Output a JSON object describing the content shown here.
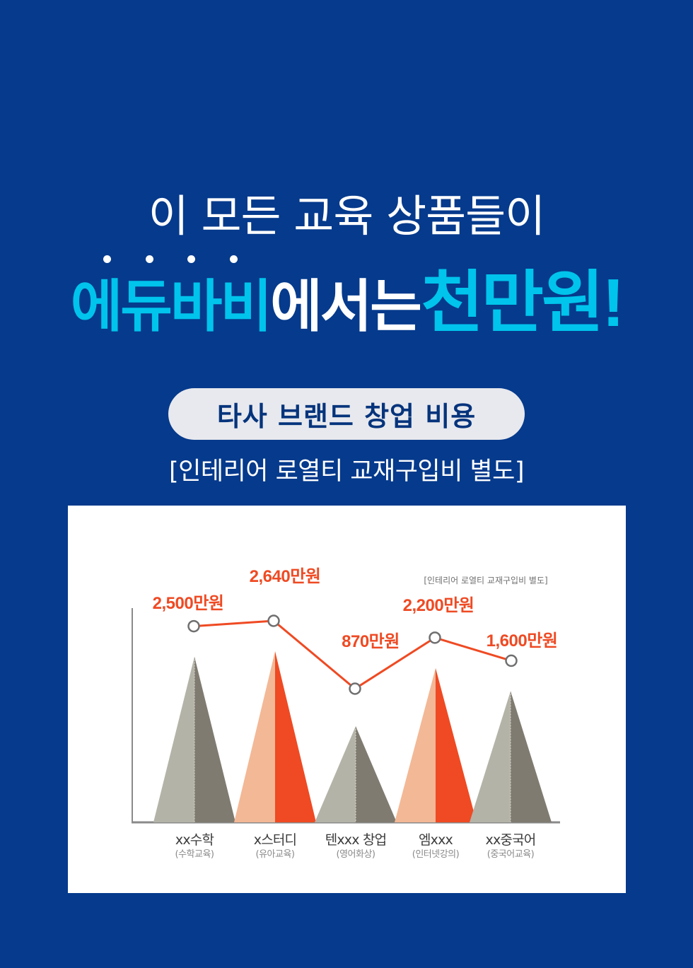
{
  "header": {
    "headline": "이 모든 교육 상품들이",
    "brand": "에듀바비",
    "brand_suffix": "에서는",
    "emphasis": "천만원!"
  },
  "section": {
    "badge": "타사 브랜드 창업 비용",
    "note": "[인테리어 로열티 교재구입비 별도]"
  },
  "colors": {
    "background": "#053a8c",
    "accent_cyan": "#00c4ec",
    "line_orange": "#ef4a23",
    "gray_light": "#b4b3a8",
    "gray_dark": "#7f7b71",
    "peach": "#f3b896"
  },
  "chart_data": {
    "type": "line",
    "note": "[인테리어 로열티 교재구입비 별도]",
    "categories": [
      {
        "name": "xx수학",
        "sub": "(수학교육)",
        "style": "gray"
      },
      {
        "name": "x스터디",
        "sub": "(유아교육)",
        "style": "orange"
      },
      {
        "name": "텐xxx 창업",
        "sub": "(영어화상)",
        "style": "gray"
      },
      {
        "name": "엠xxx",
        "sub": "(인터넷강의)",
        "style": "orange"
      },
      {
        "name": "xx중국어",
        "sub": "(중국어교육)",
        "style": "gray"
      }
    ],
    "values": [
      2500,
      2640,
      870,
      2200,
      1600
    ],
    "value_labels": [
      "2,500만원",
      "2,640만원",
      "870만원",
      "2,200만원",
      "1,600만원"
    ],
    "unit": "만원"
  }
}
